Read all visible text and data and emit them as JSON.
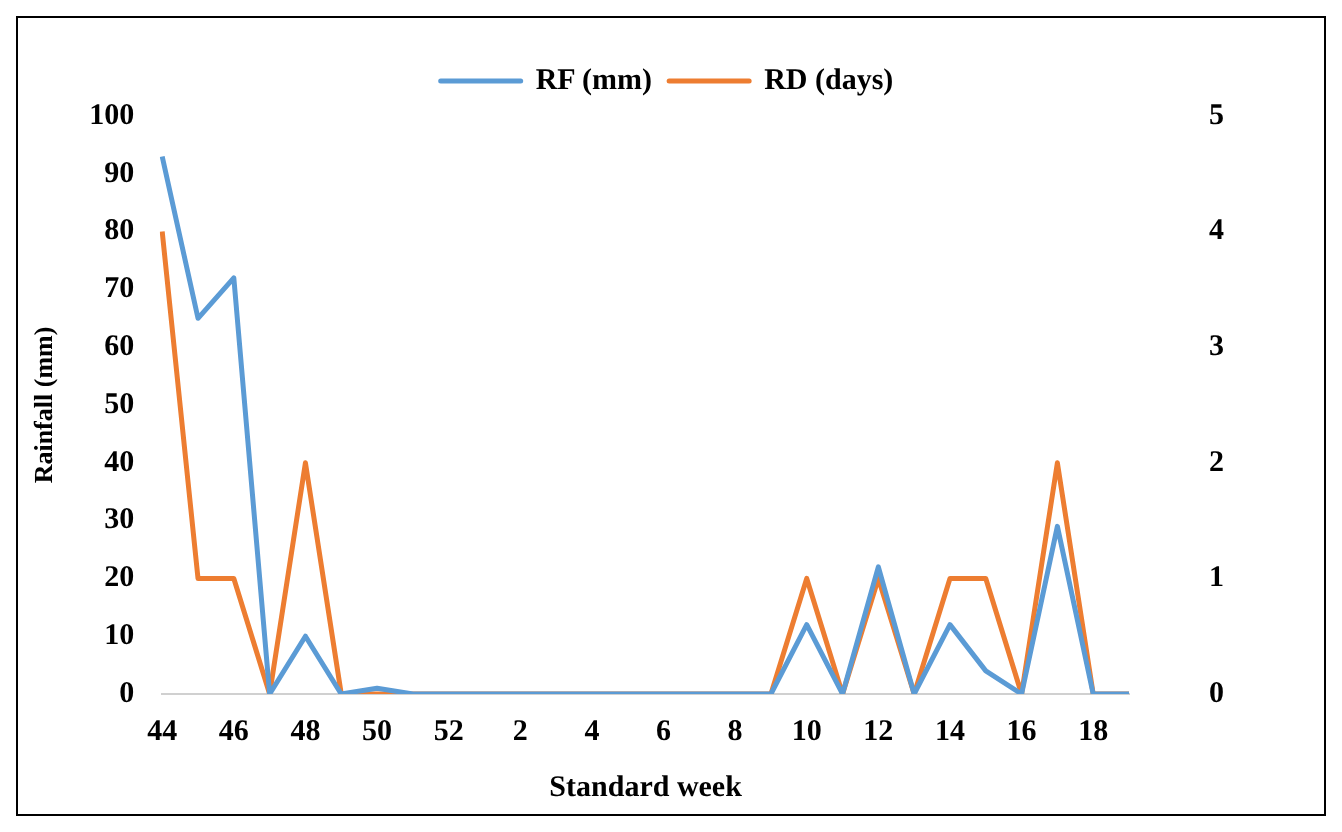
{
  "chart_data": {
    "type": "line",
    "xlabel": "Standard week",
    "ylabel": "Rainfall (mm)",
    "categories": [
      "44",
      null,
      "46",
      null,
      "48",
      null,
      "50",
      null,
      "52",
      null,
      "2",
      null,
      "4",
      null,
      "6",
      null,
      "8",
      null,
      "10",
      null,
      "12",
      null,
      "14",
      null,
      "16",
      null,
      "18",
      null
    ],
    "series": [
      {
        "name": "RF (mm)",
        "color": "#5b9bd5",
        "values": [
          93,
          65,
          72,
          0,
          10,
          0,
          1,
          0,
          0,
          0,
          0,
          0,
          0,
          0,
          0,
          0,
          0,
          0,
          12,
          0,
          22,
          0,
          12,
          4,
          0,
          29,
          0,
          0
        ]
      },
      {
        "name": "RD (days)",
        "color": "#ed7d31",
        "axis": "y2",
        "values": [
          4,
          1,
          1,
          0,
          2,
          0,
          0,
          0,
          0,
          0,
          0,
          0,
          0,
          0,
          0,
          0,
          0,
          0,
          1,
          0,
          1,
          0,
          1,
          1,
          0,
          2,
          0,
          0
        ]
      }
    ],
    "ylim": [
      0,
      100
    ],
    "yticks": [
      0,
      10,
      20,
      30,
      40,
      50,
      60,
      70,
      80,
      90,
      100
    ],
    "y2lim": [
      0,
      5
    ],
    "y2ticks": [
      0,
      1,
      2,
      3,
      4,
      5
    ],
    "legend": "top",
    "grid": false,
    "marker": "none",
    "line_style": "solid"
  }
}
